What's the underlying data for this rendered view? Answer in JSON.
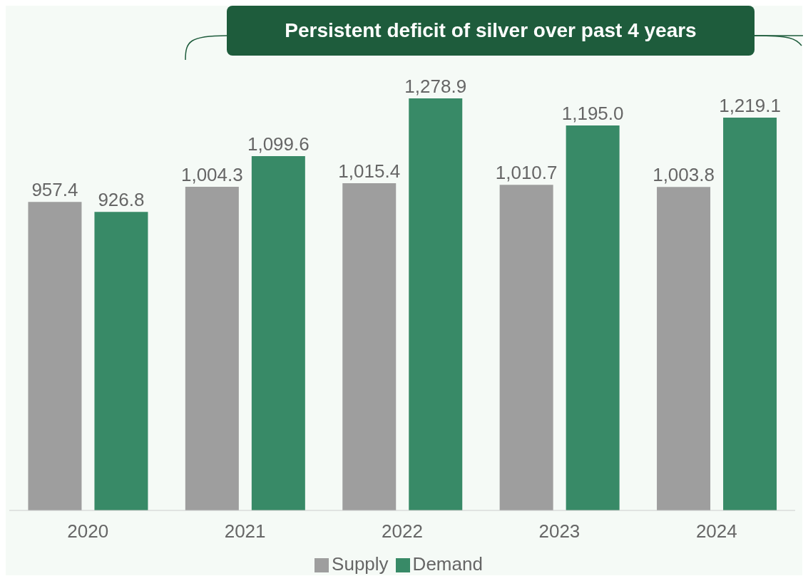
{
  "chart_data": {
    "type": "bar",
    "title": "Persistent deficit of silver over past 4 years",
    "categories": [
      "2020",
      "2021",
      "2022",
      "2023",
      "2024"
    ],
    "series": [
      {
        "name": "Supply",
        "color": "#9e9e9e",
        "values": [
          957.4,
          1004.3,
          1015.4,
          1010.7,
          1003.8
        ],
        "value_labels": [
          "957.4",
          "1,004.3",
          "1,015.4",
          "1,010.7",
          "1,003.8"
        ]
      },
      {
        "name": "Demand",
        "color": "#388a67",
        "values": [
          926.8,
          1099.6,
          1278.9,
          1195.0,
          1219.1
        ],
        "value_labels": [
          "926.8",
          "1,099.6",
          "1,278.9",
          "1,195.0",
          "1,219.1"
        ]
      }
    ],
    "legend": "bottom",
    "grid": false
  }
}
